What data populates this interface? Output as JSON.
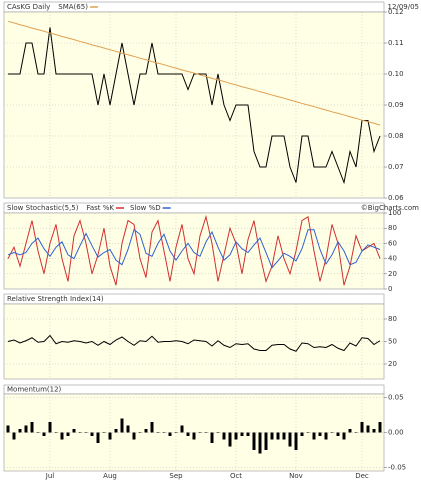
{
  "chart_data": [
    {
      "type": "line",
      "title": "CAsKG Daily",
      "date": "12/09/05",
      "ylim": [
        0.06,
        0.12
      ],
      "yticks": [
        {
          "value": 0.12,
          "label": "0.12"
        },
        0.11,
        {
          "value": 0.1,
          "label": "0.10"
        },
        0.09,
        0.08,
        0.07,
        0.06
      ],
      "series": [
        {
          "color": "#000000",
          "values": [
            0.1,
            0.1,
            0.1,
            0.11,
            0.11,
            0.1,
            0.1,
            0.115,
            0.1,
            0.1,
            0.1,
            0.1,
            0.1,
            0.1,
            0.1,
            0.09,
            0.1,
            0.09,
            0.1,
            0.11,
            0.1,
            0.09,
            0.1,
            0.1,
            0.11,
            0.1,
            0.1,
            0.1,
            0.1,
            0.1,
            0.095,
            0.1,
            0.1,
            0.1,
            0.09,
            0.1,
            0.09,
            0.085,
            0.09,
            0.09,
            0.09,
            0.075,
            0.07,
            0.07,
            0.08,
            0.08,
            0.08,
            0.07,
            0.065,
            0.08,
            0.08,
            0.07,
            0.07,
            0.07,
            0.075,
            0.07,
            0.065,
            0.075,
            0.07,
            0.085,
            0.085,
            0.075,
            0.08
          ]
        },
        {
          "name": "SMA(65)",
          "color": "#e0a050",
          "values": [
            0.117,
            0.1165,
            0.1159,
            0.1154,
            0.1148,
            0.1143,
            0.1138,
            0.1132,
            0.1127,
            0.1121,
            0.1116,
            0.1111,
            0.1105,
            0.11,
            0.1094,
            0.1089,
            0.1084,
            0.1078,
            0.1073,
            0.1067,
            0.1062,
            0.1057,
            0.1051,
            0.1046,
            0.104,
            0.1035,
            0.103,
            0.1024,
            0.1019,
            0.1013,
            0.1008,
            0.1003,
            0.0997,
            0.0992,
            0.0986,
            0.0981,
            0.0976,
            0.097,
            0.0965,
            0.0959,
            0.0954,
            0.0949,
            0.0943,
            0.0938,
            0.0932,
            0.0927,
            0.0922,
            0.0916,
            0.0911,
            0.0905,
            0.09,
            0.0895,
            0.0889,
            0.0884,
            0.0878,
            0.0873,
            0.0868,
            0.0862,
            0.0857,
            0.0851,
            0.0846,
            0.0841,
            0.0835
          ]
        }
      ]
    },
    {
      "type": "line",
      "title": "Slow Stochastic(5,5)",
      "source": "©BigCharts.com",
      "ylim": [
        0,
        100
      ],
      "yticks": [
        100,
        80,
        60,
        40,
        20,
        0
      ],
      "series": [
        {
          "name": "Fast %K",
          "color": "#d03030",
          "values": [
            40,
            55,
            30,
            60,
            90,
            50,
            20,
            60,
            85,
            40,
            10,
            70,
            90,
            60,
            20,
            45,
            80,
            30,
            5,
            60,
            90,
            85,
            40,
            15,
            75,
            90,
            50,
            10,
            55,
            85,
            40,
            20,
            70,
            95,
            60,
            10,
            45,
            80,
            60,
            20,
            65,
            90,
            45,
            10,
            30,
            70,
            40,
            20,
            50,
            90,
            95,
            50,
            10,
            40,
            85,
            60,
            5,
            30,
            70,
            50,
            55,
            60,
            40
          ]
        },
        {
          "name": "Slow %D",
          "color": "#3060d0",
          "values": [
            45,
            48,
            45,
            48,
            60,
            67,
            53,
            43,
            55,
            62,
            45,
            40,
            57,
            73,
            57,
            42,
            48,
            52,
            38,
            32,
            52,
            78,
            72,
            47,
            43,
            60,
            72,
            50,
            38,
            50,
            60,
            48,
            43,
            62,
            75,
            55,
            38,
            45,
            62,
            53,
            48,
            58,
            67,
            48,
            28,
            37,
            47,
            43,
            37,
            53,
            78,
            78,
            52,
            33,
            45,
            62,
            50,
            32,
            35,
            50,
            58,
            55,
            52
          ]
        }
      ]
    },
    {
      "type": "line",
      "title": "Relative Strength Index(14)",
      "ylim": [
        0,
        100
      ],
      "yticks": [
        80,
        50,
        20
      ],
      "series": [
        {
          "color": "#000000",
          "values": [
            50,
            52,
            48,
            51,
            55,
            49,
            50,
            58,
            47,
            50,
            49,
            51,
            50,
            48,
            50,
            45,
            50,
            46,
            52,
            56,
            50,
            45,
            51,
            50,
            57,
            49,
            50,
            50,
            51,
            50,
            47,
            52,
            51,
            50,
            44,
            51,
            45,
            42,
            47,
            46,
            47,
            40,
            38,
            38,
            45,
            46,
            46,
            40,
            37,
            48,
            47,
            42,
            43,
            42,
            46,
            41,
            38,
            48,
            44,
            55,
            54,
            46,
            51
          ]
        }
      ]
    },
    {
      "type": "bar",
      "title": "Momentum(12)",
      "ylim": [
        -0.055,
        0.055
      ],
      "yticks": [
        0.05,
        {
          "value": 0,
          "label": "0.00"
        },
        -0.05
      ],
      "color": "#000000",
      "values": [
        0.01,
        -0.01,
        0.005,
        0.01,
        0.015,
        0,
        -0.005,
        0.015,
        0,
        -0.01,
        -0.005,
        0.005,
        0,
        0,
        -0.005,
        -0.015,
        0,
        -0.01,
        0.005,
        0.02,
        0.01,
        -0.01,
        0,
        0.005,
        0.015,
        0,
        0,
        -0.005,
        0,
        0.01,
        -0.005,
        -0.01,
        0,
        0,
        -0.015,
        0,
        -0.01,
        -0.02,
        -0.01,
        -0.005,
        -0.005,
        -0.025,
        -0.03,
        -0.025,
        -0.01,
        -0.01,
        -0.01,
        -0.02,
        -0.025,
        -0.005,
        0,
        -0.01,
        -0.005,
        -0.01,
        0,
        -0.005,
        -0.01,
        0.005,
        0,
        0.015,
        0.01,
        0.005,
        0.015
      ],
      "xticks": [
        {
          "value": 7,
          "label": "Jul"
        },
        {
          "value": 17,
          "label": "Aug"
        },
        {
          "value": 28,
          "label": "Sep"
        },
        {
          "value": 38,
          "label": "Oct"
        },
        {
          "value": 48,
          "label": "Nov"
        },
        {
          "value": 59,
          "label": "Dec"
        }
      ]
    }
  ]
}
